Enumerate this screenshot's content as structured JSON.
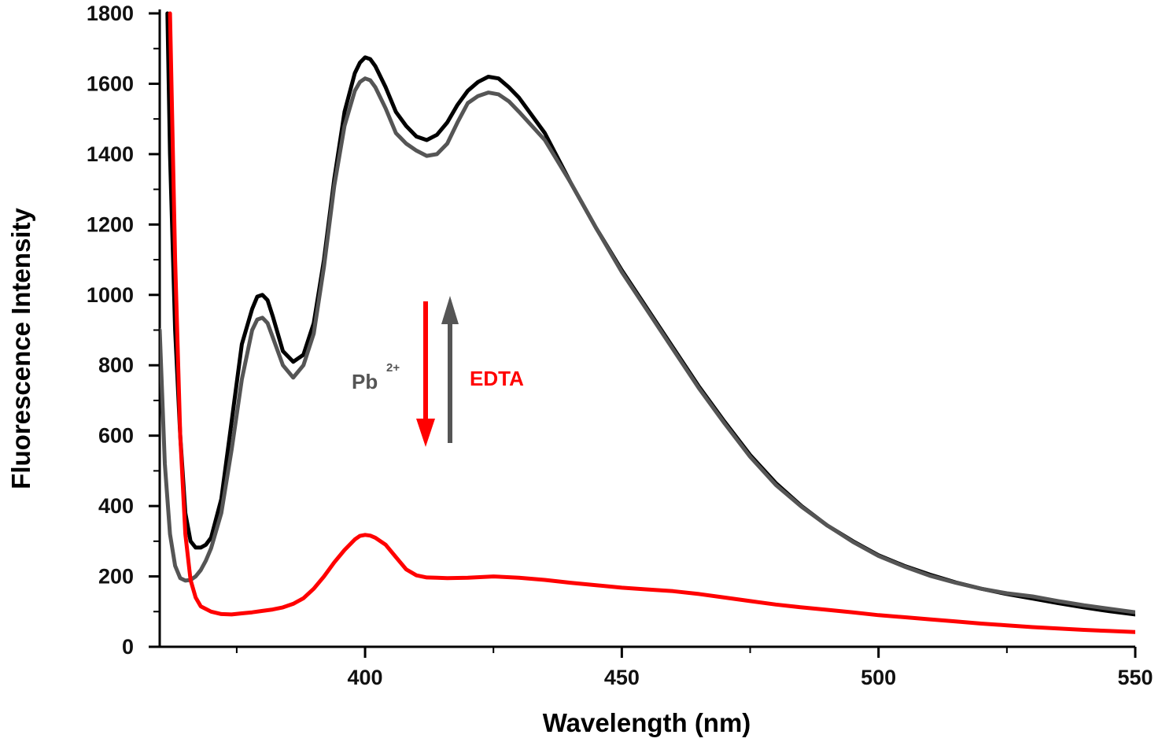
{
  "chart_data": {
    "type": "line",
    "title": "",
    "xlabel": "Wavelength (nm)",
    "ylabel": "Fluorescence Intensity",
    "xlim": [
      360,
      550
    ],
    "ylim": [
      0,
      1800
    ],
    "xticks": [
      400,
      450,
      500,
      550
    ],
    "yticks": [
      0,
      200,
      400,
      600,
      800,
      1000,
      1200,
      1400,
      1600,
      1800
    ],
    "grid": false,
    "legend": "none",
    "annotations": {
      "metal": "Pb",
      "metal_charge": "2+",
      "chelator": "EDTA",
      "metal_color": "#555555",
      "chelator_color": "#ff0000"
    },
    "series": [
      {
        "color": "#000000",
        "x": [
          361.5,
          362,
          363,
          364,
          365,
          366,
          367,
          368,
          369,
          370,
          372,
          374,
          376,
          378,
          379,
          380,
          381,
          382,
          384,
          386,
          388,
          390,
          392,
          394,
          396,
          398,
          399,
          400,
          401,
          402,
          404,
          406,
          408,
          410,
          412,
          414,
          416,
          418,
          420,
          422,
          424,
          426,
          428,
          430,
          435,
          440,
          445,
          450,
          455,
          460,
          465,
          470,
          475,
          480,
          485,
          490,
          495,
          500,
          505,
          510,
          515,
          520,
          525,
          530,
          535,
          540,
          545,
          550
        ],
        "y": [
          1800,
          1400,
          900,
          600,
          380,
          300,
          282,
          282,
          290,
          310,
          420,
          640,
          860,
          960,
          995,
          1000,
          985,
          940,
          840,
          810,
          830,
          920,
          1100,
          1330,
          1520,
          1630,
          1660,
          1675,
          1670,
          1650,
          1590,
          1520,
          1480,
          1450,
          1440,
          1455,
          1490,
          1540,
          1580,
          1605,
          1620,
          1615,
          1590,
          1560,
          1460,
          1320,
          1190,
          1070,
          960,
          850,
          740,
          640,
          545,
          465,
          400,
          345,
          300,
          260,
          230,
          205,
          183,
          165,
          150,
          137,
          124,
          112,
          101,
          92
        ]
      },
      {
        "color": "#555555",
        "x": [
          360,
          361,
          362,
          363,
          364,
          365,
          366,
          367,
          368,
          369,
          370,
          372,
          374,
          376,
          378,
          379,
          380,
          381,
          382,
          384,
          386,
          388,
          390,
          392,
          394,
          396,
          398,
          399,
          400,
          401,
          402,
          404,
          406,
          408,
          410,
          412,
          414,
          416,
          418,
          420,
          422,
          424,
          426,
          428,
          430,
          435,
          440,
          445,
          450,
          455,
          460,
          465,
          470,
          475,
          480,
          485,
          490,
          495,
          500,
          505,
          510,
          515,
          520,
          525,
          530,
          535,
          540,
          545,
          550
        ],
        "y": [
          900,
          520,
          320,
          230,
          195,
          188,
          190,
          200,
          218,
          245,
          280,
          380,
          560,
          760,
          900,
          930,
          935,
          920,
          880,
          800,
          765,
          800,
          890,
          1080,
          1310,
          1480,
          1580,
          1605,
          1615,
          1610,
          1590,
          1530,
          1460,
          1430,
          1410,
          1395,
          1400,
          1430,
          1490,
          1545,
          1565,
          1575,
          1570,
          1550,
          1520,
          1440,
          1320,
          1190,
          1065,
          955,
          845,
          735,
          635,
          540,
          460,
          398,
          345,
          298,
          258,
          228,
          202,
          182,
          165,
          152,
          143,
          130,
          118,
          108,
          98
        ]
      },
      {
        "color": "#ff0000",
        "x": [
          362,
          363,
          364,
          365,
          366,
          367,
          368,
          370,
          372,
          374,
          376,
          378,
          380,
          382,
          384,
          386,
          388,
          390,
          392,
          394,
          396,
          398,
          399,
          400,
          401,
          402,
          404,
          406,
          408,
          410,
          412,
          414,
          416,
          420,
          425,
          430,
          435,
          440,
          445,
          450,
          455,
          460,
          465,
          470,
          475,
          480,
          485,
          490,
          495,
          500,
          505,
          510,
          515,
          520,
          525,
          530,
          535,
          540,
          545,
          550
        ],
        "y": [
          1800,
          1100,
          600,
          320,
          190,
          140,
          115,
          100,
          93,
          92,
          95,
          98,
          102,
          106,
          112,
          122,
          138,
          165,
          200,
          240,
          275,
          305,
          315,
          318,
          316,
          310,
          290,
          255,
          220,
          203,
          197,
          196,
          195,
          196,
          200,
          196,
          190,
          182,
          175,
          168,
          163,
          158,
          150,
          140,
          130,
          120,
          112,
          105,
          98,
          90,
          84,
          78,
          72,
          66,
          61,
          56,
          52,
          48,
          45,
          42
        ]
      }
    ]
  }
}
